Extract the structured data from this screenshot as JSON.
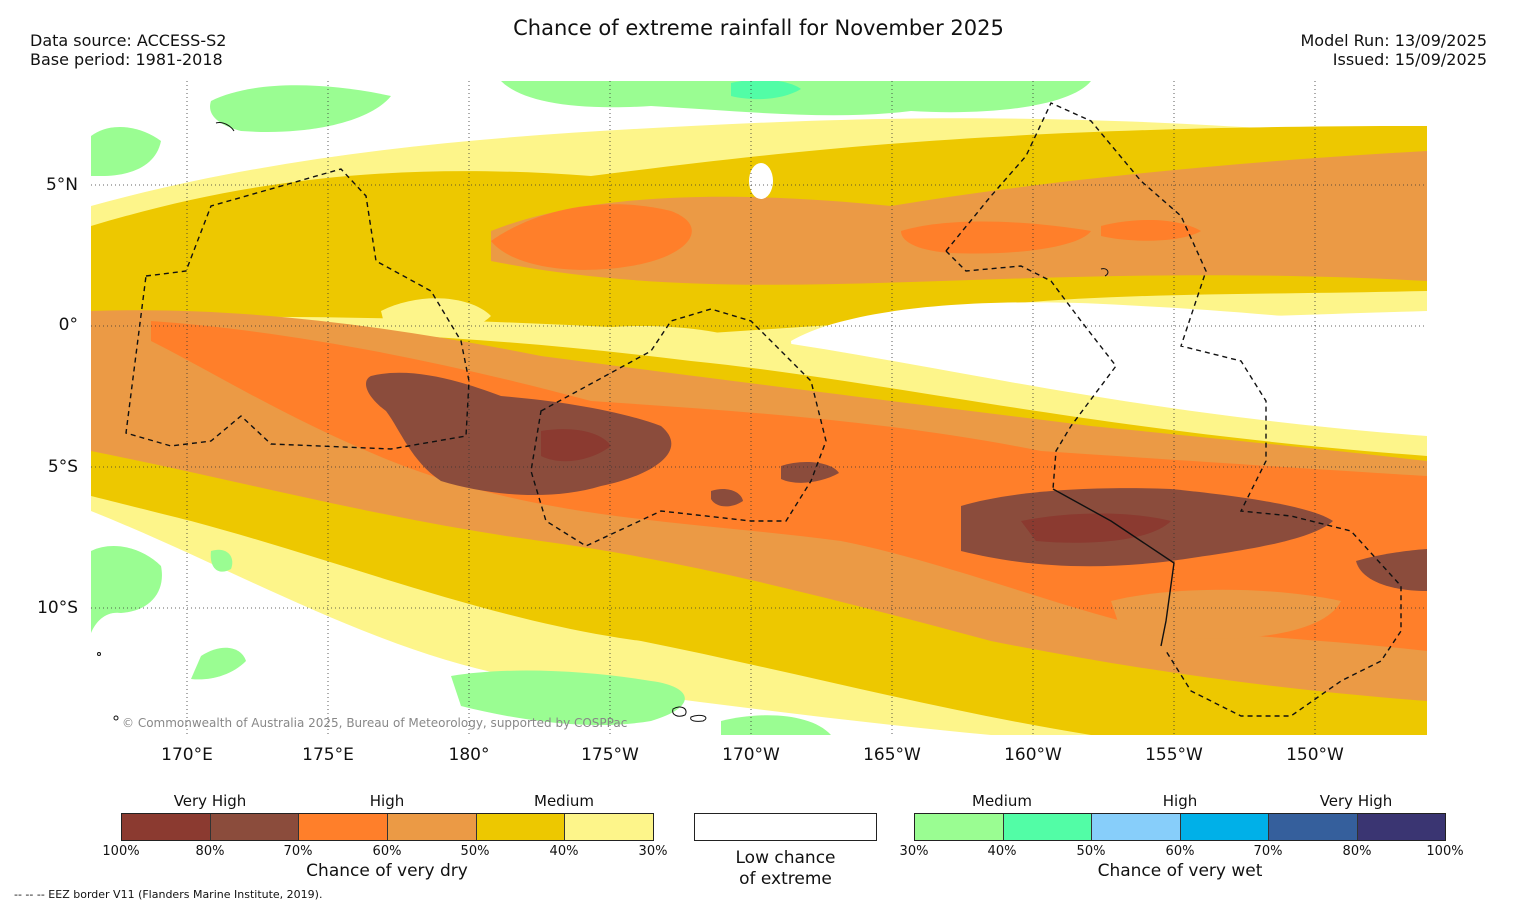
{
  "header": {
    "title": "Chance of extreme rainfall for November 2025",
    "data_source": "Data source: ACCESS-S2",
    "base_period": "Base period: 1981-2018",
    "model_run": "Model Run: 13/09/2025",
    "issued": "Issued: 15/09/2025"
  },
  "map": {
    "lat_labels": [
      "5°N",
      "0°",
      "5°S",
      "10°S"
    ],
    "lon_labels": [
      "170°E",
      "175°E",
      "180°",
      "175°W",
      "170°W",
      "165°W",
      "160°W",
      "155°W",
      "150°W"
    ],
    "copyright": "© Commonwealth of Australia 2025, Bureau of Meteorology, supported by COSPPac",
    "colors": {
      "dry": [
        "#8b3a30",
        "#8b4c3c",
        "#ff7f2a",
        "#eb9a45",
        "#edc800",
        "#fdf58a"
      ],
      "wet": [
        "#9afd92",
        "#52fda6",
        "#87cefa",
        "#00b0e8",
        "#355f9c",
        "#3a3572"
      ],
      "low": "#ffffff"
    }
  },
  "legend": {
    "dry": {
      "categories": [
        "Very High",
        "High",
        "Medium"
      ],
      "ticks": [
        "100%",
        "80%",
        "70%",
        "60%",
        "50%",
        "40%",
        "30%"
      ],
      "caption": "Chance of very dry"
    },
    "low": {
      "caption_line1": "Low chance",
      "caption_line2": "of extreme"
    },
    "wet": {
      "categories": [
        "Medium",
        "High",
        "Very High"
      ],
      "ticks": [
        "30%",
        "40%",
        "50%",
        "60%",
        "70%",
        "80%",
        "100%"
      ],
      "caption": "Chance of very wet"
    }
  },
  "footer": {
    "eez_note": "--  --  -- EEZ border V11 (Flanders Marine Institute, 2019)."
  }
}
